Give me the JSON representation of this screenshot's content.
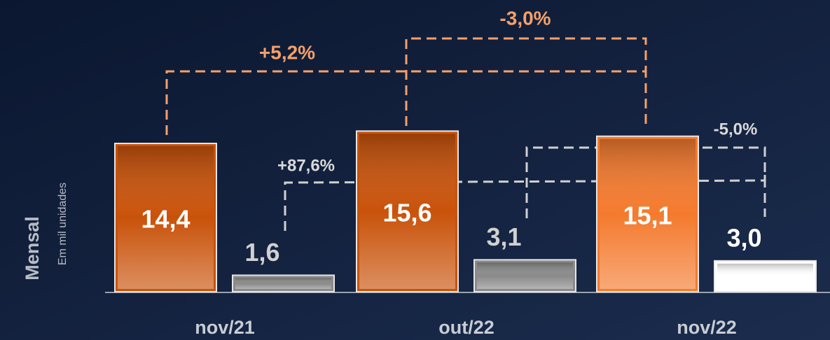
{
  "chart_data": {
    "type": "bar",
    "categories": [
      "nov/21",
      "out/22",
      "nov/22"
    ],
    "series": [
      {
        "color": "#c9520a",
        "colors": [
          "#c9520a",
          "#c9520a",
          "#f47a2e"
        ],
        "values": [
          14.4,
          15.6,
          15.1
        ],
        "value_labels": [
          "14,4",
          "15,6",
          "15,1"
        ]
      },
      {
        "color": "#8a8a8a",
        "colors": [
          "#8a8a8a",
          "#8a8a8a",
          "#ffffff"
        ],
        "values": [
          1.6,
          3.1,
          3.0
        ],
        "value_labels": [
          "1,6",
          "3,1",
          "3,0"
        ]
      }
    ],
    "annotations": [
      {
        "text": "+5,2%",
        "color": "#f5a06a"
      },
      {
        "text": "-3,0%",
        "color": "#f5a06a"
      },
      {
        "text": "+87,6%",
        "color": "#d9d9d9"
      },
      {
        "text": "-5,0%",
        "color": "#d9d9d9"
      }
    ],
    "y_axis_label": "Mensal",
    "y_axis_sublabel": "Em mil unidades"
  }
}
